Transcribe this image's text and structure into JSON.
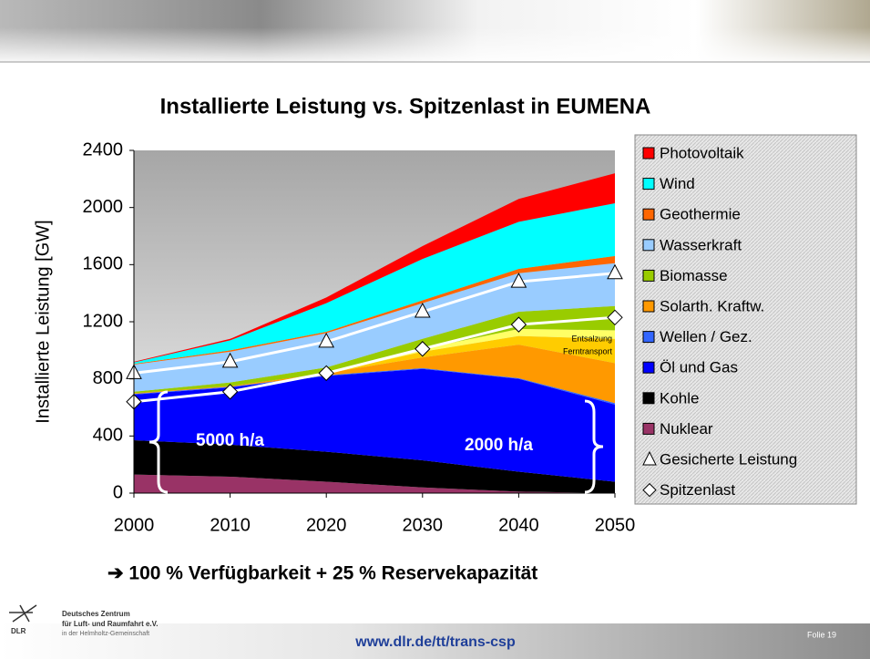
{
  "chart_data": {
    "type": "area",
    "title": "Installierte Leistung vs. Spitzenlast in EUMENA",
    "ylabel": "Installierte Leistung [GW]",
    "x": [
      2000,
      2010,
      2020,
      2030,
      2040,
      2050
    ],
    "xlim": [
      2000,
      2050
    ],
    "xticks": [
      2000,
      2010,
      2020,
      2030,
      2040,
      2050
    ],
    "ylim": [
      0,
      2400
    ],
    "yticks": [
      0,
      400,
      800,
      1200,
      1600,
      2000,
      2400
    ],
    "legend": "right",
    "series": [
      {
        "name": "Nuklear",
        "color": "#993366",
        "values": [
          130,
          115,
          80,
          40,
          10,
          0
        ]
      },
      {
        "name": "Kohle",
        "color": "#000000",
        "values": [
          240,
          225,
          210,
          190,
          140,
          80
        ]
      },
      {
        "name": "Öl und Gas",
        "color": "#0000ff",
        "values": [
          320,
          400,
          530,
          640,
          650,
          540
        ]
      },
      {
        "name": "Wellen / Gez.",
        "color": "#3366ff",
        "values": [
          5,
          5,
          5,
          5,
          5,
          10
        ]
      },
      {
        "name": "Solarth. Kraftw.",
        "color": "#ff9900",
        "values": [
          5,
          5,
          15,
          75,
          235,
          280
        ]
      },
      {
        "name": "Entsalzung",
        "color": "#ffcc00",
        "in_legend": false,
        "values": [
          0,
          0,
          0,
          40,
          60,
          170
        ]
      },
      {
        "name": "Ferntransport",
        "color": "#ffff66",
        "in_legend": false,
        "values": [
          0,
          0,
          0,
          20,
          50,
          60
        ]
      },
      {
        "name": "Biomasse",
        "color": "#99cc00",
        "values": [
          10,
          25,
          40,
          70,
          120,
          170
        ]
      },
      {
        "name": "Wasserkraft",
        "color": "#99ccff",
        "values": [
          190,
          215,
          240,
          250,
          270,
          300
        ]
      },
      {
        "name": "Geothermie",
        "color": "#ff6600",
        "values": [
          5,
          10,
          10,
          20,
          30,
          50
        ]
      },
      {
        "name": "Wind",
        "color": "#00ffff",
        "values": [
          10,
          70,
          200,
          290,
          330,
          370
        ]
      },
      {
        "name": "Photovoltaik",
        "color": "#ff0000",
        "values": [
          5,
          10,
          40,
          90,
          160,
          210
        ]
      },
      {
        "name": "Gesicherte Leistung",
        "color": "#ffffff",
        "kind": "line",
        "marker": "triangle",
        "values": [
          840,
          920,
          1060,
          1270,
          1480,
          1540
        ]
      },
      {
        "name": "Spitzenlast",
        "color": "#ffffff",
        "kind": "line",
        "marker": "diamond",
        "values": [
          640,
          710,
          840,
          1010,
          1180,
          1230
        ]
      }
    ],
    "annotations": [
      "5000 h/a",
      "2000 h/a"
    ]
  },
  "statement": "➔ 100 % Verfügbarkeit + 25 % Reservekapazität",
  "footer": {
    "org_line1": "Deutsches Zentrum",
    "org_line2": "für Luft- und Raumfahrt e.V.",
    "org_line3": "in der Helmholtz-Gemeinschaft",
    "logo": "DLR",
    "url": "www.dlr.de/tt/trans-csp",
    "slide": "Folie 19"
  }
}
